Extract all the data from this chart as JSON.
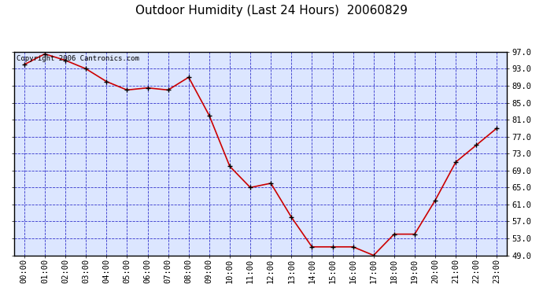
{
  "title": "Outdoor Humidity (Last 24 Hours)  20060829",
  "copyright_text": "Copyright 2006 Cantronics.com",
  "x_labels": [
    "00:00",
    "01:00",
    "02:00",
    "03:00",
    "04:00",
    "05:00",
    "06:00",
    "07:00",
    "08:00",
    "09:00",
    "10:00",
    "11:00",
    "12:00",
    "13:00",
    "14:00",
    "15:00",
    "16:00",
    "17:00",
    "18:00",
    "19:00",
    "20:00",
    "21:00",
    "22:00",
    "23:00"
  ],
  "y_values": [
    94.0,
    96.5,
    95.0,
    93.0,
    90.0,
    88.0,
    88.5,
    88.0,
    91.0,
    82.0,
    70.0,
    65.0,
    66.0,
    58.0,
    51.0,
    51.0,
    51.0,
    49.0,
    54.0,
    54.0,
    62.0,
    71.0,
    75.0,
    79.0
  ],
  "ylim": [
    49.0,
    97.0
  ],
  "yticks": [
    49.0,
    53.0,
    57.0,
    61.0,
    65.0,
    69.0,
    73.0,
    77.0,
    81.0,
    85.0,
    89.0,
    93.0,
    97.0
  ],
  "line_color": "#cc0000",
  "marker_color": "#000000",
  "bg_color": "#dce6ff",
  "grid_color": "#3333cc",
  "border_color": "#000000",
  "title_color": "#000000",
  "outer_bg": "#ffffff",
  "title_fontsize": 11,
  "copyright_fontsize": 6.5,
  "tick_fontsize": 7.5
}
